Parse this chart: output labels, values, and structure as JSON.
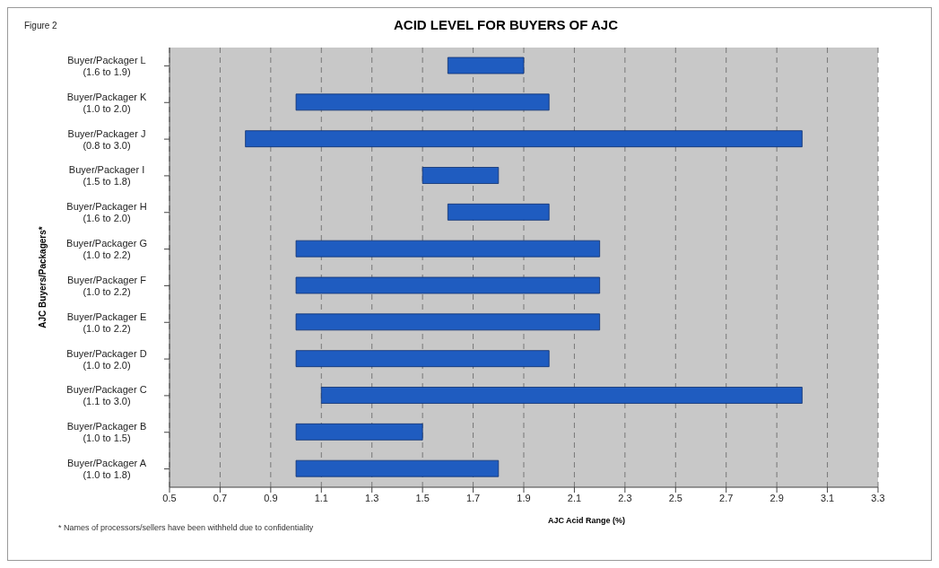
{
  "chart_data": {
    "type": "bar",
    "orientation": "horizontal",
    "title": "ACID LEVEL FOR BUYERS OF AJC",
    "xlabel": "AJC Acid Range (%)",
    "ylabel": "AJC Buyers/Packagers*",
    "annotations": [
      "Figure 2",
      "* Names of processors/sellers have been withheld due to confidentiality"
    ],
    "categories": [
      "Buyer/Packager L\n(1.6 to 1.9)",
      "Buyer/Packager K\n(1.0 to 2.0)",
      "Buyer/Packager J\n(0.8 to 3.0)",
      "Buyer/Packager I\n(1.5 to 1.8)",
      "Buyer/Packager H\n(1.6 to 2.0)",
      "Buyer/Packager G\n(1.0 to 2.2)",
      "Buyer/Packager F\n(1.0 to 2.2)",
      "Buyer/Packager E\n(1.0 to 2.2)",
      "Buyer/Packager D\n(1.0 to 2.0)",
      "Buyer/Packager C\n(1.1 to 3.0)",
      "Buyer/Packager B\n(1.0 to 1.5)",
      "Buyer/Packager A\n(1.0 to 1.8)"
    ],
    "base": [
      1.6,
      1.0,
      0.8,
      1.5,
      1.6,
      1.0,
      1.0,
      1.0,
      1.0,
      1.1,
      1.0,
      1.0
    ],
    "values": [
      0.3,
      1.0,
      2.2,
      0.3,
      0.4,
      1.2,
      1.2,
      1.2,
      1.0,
      1.9,
      0.5,
      0.8
    ],
    "color": "#1f5cc0",
    "xlim": [
      0.5,
      3.3
    ],
    "xticks": [
      0.5,
      0.7,
      0.9,
      1.1,
      1.3,
      1.5,
      1.7,
      1.9,
      2.1,
      2.3,
      2.5,
      2.7,
      2.9,
      3.1,
      3.3
    ],
    "grid": "x",
    "line_style": "dashed"
  }
}
